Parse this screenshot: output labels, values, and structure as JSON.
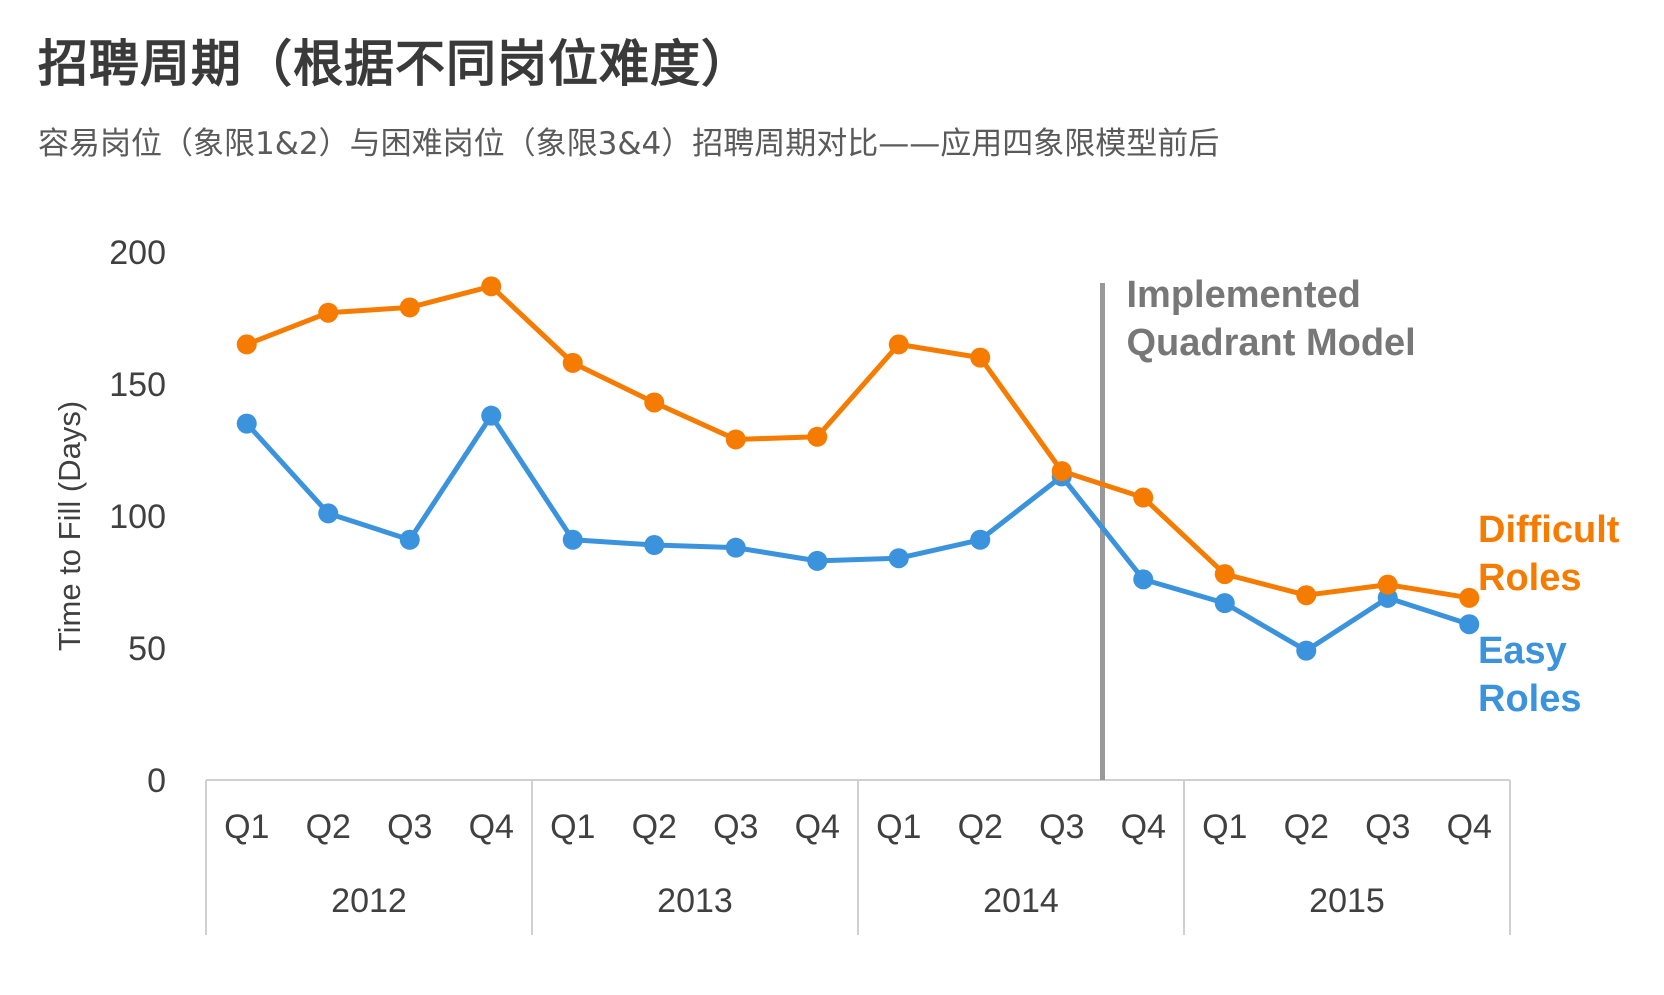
{
  "title": "招聘周期（根据不同岗位难度）",
  "subtitle": "容易岗位（象限1&2）与困难岗位（象限3&4）招聘周期对比——应用四象限模型前后",
  "colors": {
    "difficult": "#f57c00",
    "easy": "#3a93dc",
    "marker_line": "#999999",
    "annotation": "#777777",
    "axis_text": "#404040",
    "axis_line": "#d0d0d0"
  },
  "chart_data": {
    "type": "line",
    "ylabel": "Time to Fill (Days)",
    "ylim": [
      0,
      200
    ],
    "yticks": [
      0,
      50,
      100,
      150,
      200
    ],
    "grid": false,
    "x": [
      "Q1",
      "Q2",
      "Q3",
      "Q4",
      "Q1",
      "Q2",
      "Q3",
      "Q4",
      "Q1",
      "Q2",
      "Q3",
      "Q4",
      "Q1",
      "Q2",
      "Q3",
      "Q4"
    ],
    "years": [
      {
        "label": "2012",
        "span": 4
      },
      {
        "label": "2013",
        "span": 4
      },
      {
        "label": "2014",
        "span": 4
      },
      {
        "label": "2015",
        "span": 4
      }
    ],
    "series": [
      {
        "name": "Difficult Roles",
        "color": "#f57c00",
        "values": [
          165,
          177,
          179,
          187,
          158,
          143,
          129,
          130,
          165,
          160,
          117,
          107,
          78,
          70,
          74,
          69
        ]
      },
      {
        "name": "Easy Roles",
        "color": "#3a93dc",
        "values": [
          135,
          101,
          91,
          138,
          91,
          89,
          88,
          83,
          84,
          91,
          115,
          76,
          67,
          49,
          69,
          59
        ]
      }
    ],
    "annotations": [
      {
        "text": "Implemented Quadrant Model",
        "at_index": 10.5,
        "lines": [
          "Implemented",
          "Quadrant Model"
        ]
      }
    ],
    "series_labels": [
      {
        "lines": [
          "Difficult",
          "Roles"
        ]
      },
      {
        "lines": [
          "Easy",
          "Roles"
        ]
      }
    ]
  }
}
